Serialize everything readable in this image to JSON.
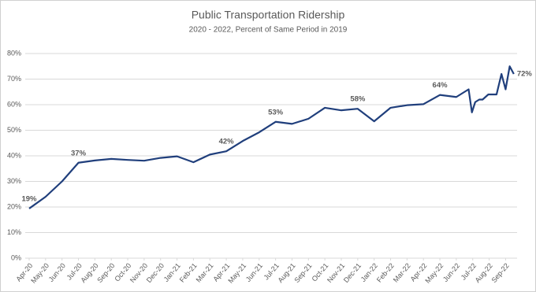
{
  "chart_data": {
    "type": "line",
    "title": "Public Transportation Ridership",
    "subtitle": "2020 - 2022, Percent of Same Period in 2019",
    "x": [
      0,
      1,
      2,
      3,
      4,
      5,
      6,
      7,
      8,
      9,
      10,
      11,
      12,
      13,
      14,
      15,
      16,
      17,
      18,
      19,
      20,
      21,
      22,
      23,
      24,
      25,
      26,
      26.75,
      26.95,
      27.15,
      27.4,
      27.6,
      27.95,
      28.45,
      28.75,
      29,
      29.25,
      29.5
    ],
    "series": [
      {
        "name": "Ridership",
        "color": "#203f7c",
        "values": [
          19.4,
          24,
          30,
          37.3,
          38.2,
          38.8,
          38.4,
          38.1,
          39.2,
          39.8,
          37.5,
          40.5,
          41.8,
          45.8,
          49.2,
          53.3,
          52.5,
          54.5,
          58.8,
          57.8,
          58.4,
          53.5,
          58.8,
          59.8,
          60.2,
          63.8,
          63,
          66,
          57,
          61,
          62,
          62,
          64,
          64,
          72,
          66,
          75,
          72
        ],
        "value_labels": [
          "19%",
          null,
          null,
          "37%",
          null,
          null,
          null,
          null,
          null,
          null,
          null,
          null,
          "42%",
          null,
          null,
          "53%",
          null,
          null,
          null,
          null,
          "58%",
          null,
          null,
          null,
          null,
          "64%",
          null,
          null,
          null,
          null,
          null,
          null,
          null,
          null,
          null,
          null,
          null,
          "72%"
        ]
      }
    ],
    "xlim": [
      0,
      29.7
    ],
    "xticks": [
      {
        "value": 0,
        "label": "Apr-20"
      },
      {
        "value": 1,
        "label": "May-20"
      },
      {
        "value": 2,
        "label": "Jun-20"
      },
      {
        "value": 3,
        "label": "Jul-20"
      },
      {
        "value": 4,
        "label": "Aug-20"
      },
      {
        "value": 5,
        "label": "Sep-20"
      },
      {
        "value": 6,
        "label": "Oct-20"
      },
      {
        "value": 7,
        "label": "Nov-20"
      },
      {
        "value": 8,
        "label": "Dec-20"
      },
      {
        "value": 9,
        "label": "Jan-21"
      },
      {
        "value": 10,
        "label": "Feb-21"
      },
      {
        "value": 11,
        "label": "Mar-21"
      },
      {
        "value": 12,
        "label": "Apr-21"
      },
      {
        "value": 13,
        "label": "May-21"
      },
      {
        "value": 14,
        "label": "Jun-21"
      },
      {
        "value": 15,
        "label": "Jul-21"
      },
      {
        "value": 16,
        "label": "Aug-21"
      },
      {
        "value": 17,
        "label": "Sep-21"
      },
      {
        "value": 18,
        "label": "Oct-21"
      },
      {
        "value": 19,
        "label": "Nov-21"
      },
      {
        "value": 20,
        "label": "Dec-21"
      },
      {
        "value": 21,
        "label": "Jan-22"
      },
      {
        "value": 22,
        "label": "Feb-22"
      },
      {
        "value": 23,
        "label": "Mar-22"
      },
      {
        "value": 24,
        "label": "Apr-22"
      },
      {
        "value": 25,
        "label": "May-22"
      },
      {
        "value": 26,
        "label": "Jun-22"
      },
      {
        "value": 27,
        "label": "Jul-22"
      },
      {
        "value": 28,
        "label": "Aug-22"
      },
      {
        "value": 29,
        "label": "Sep-22"
      }
    ],
    "ylim": [
      0,
      80
    ],
    "yticks": [
      {
        "value": 0,
        "label": "0%"
      },
      {
        "value": 10,
        "label": "10%"
      },
      {
        "value": 20,
        "label": "20%"
      },
      {
        "value": 30,
        "label": "30%"
      },
      {
        "value": 40,
        "label": "40%"
      },
      {
        "value": 50,
        "label": "50%"
      },
      {
        "value": 60,
        "label": "60%"
      },
      {
        "value": 70,
        "label": "70%"
      },
      {
        "value": 80,
        "label": "80%"
      }
    ],
    "grid": true
  }
}
